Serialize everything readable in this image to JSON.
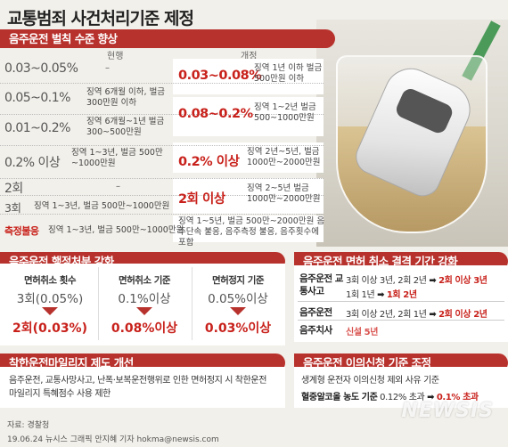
{
  "title": "교통범죄 사건처리기준 제정",
  "section1": {
    "banner": "음주운전 벌칙 수준 향상",
    "col_current": "현행",
    "col_revised": "개정",
    "rows": [
      {
        "current": "0.03~0.05%",
        "current_penalty": "–"
      },
      {
        "current": "0.05~0.1%",
        "current_penalty": "징역 6개월 이하, 벌금 300만원 이하"
      },
      {
        "current": "0.01~0.2%",
        "current_penalty": "징역 6개월~1년 벌금 300~500만원"
      },
      {
        "current": "0.2% 이상",
        "current_penalty": "징역 1~3년, 벌금 500만~1000만원"
      },
      {
        "current": "2회",
        "current_penalty": "–"
      },
      {
        "current": "3회",
        "current_penalty": "징역 1~3년, 벌금 500만~1000만원"
      },
      {
        "current": "측정불응",
        "current_penalty": "징역 1~3년, 벌금 500만~1000만원"
      }
    ],
    "revised": [
      {
        "value": "0.03~0.08%",
        "penalty": "징역 1년 이하 벌금 500만원 이하"
      },
      {
        "value": "0.08~0.2%",
        "penalty": "징역 1~2년 벌금 500~1000만원"
      },
      {
        "value": "0.2% 이상",
        "penalty": "징역 2년~5년, 벌금 1000만~2000만원"
      },
      {
        "value": "2회 이상",
        "penalty": "징역 2~5년 벌금 1000만~2000만원"
      },
      {
        "value": "",
        "penalty": "징역 1~5년, 벌금 500만~2000만원 음주단속 불응, 음주측정 불응, 음주횟수에 포함"
      }
    ]
  },
  "section2": {
    "banner": "음주운전 행정처분 강화",
    "cards": [
      {
        "label": "면허취소 횟수",
        "old": "3회(0.05%)",
        "new": "2회(0.03%)"
      },
      {
        "label": "면허취소 기준",
        "old": "0.1%이상",
        "new": "0.08%이상"
      },
      {
        "label": "면허정지 기준",
        "old": "0.05%이상",
        "new": "0.03%이상"
      }
    ]
  },
  "section3": {
    "banner": "음주운전 면허 취소 결격 기간 강화",
    "rows": [
      {
        "label": "음주운전 교통사고",
        "line1_pre": "3회 이상 3년, 2회 2년",
        "line1_new": "2회 이상 3년",
        "line2_pre": "1회 1년",
        "line2_new": "1회 2년"
      },
      {
        "label": "음주운전",
        "line1_pre": "3회 이상 2년, 2회 1년",
        "line1_new": "2회 이상 2년"
      },
      {
        "label": "음주치사",
        "new": "신설 5년"
      }
    ]
  },
  "section4": {
    "banner": "착한운전마일리지 제도 개선",
    "text": "음주운전, 교통사망사고, 난폭·보복운전행위로 인한 면허정지 시 착한운전 마일리지 특혜점수 사용 제한"
  },
  "section5": {
    "banner": "음주운전 이의신청 기준 조정",
    "line1": "생계형 운전자 이의신청 제외 사유 기준",
    "line2_label": "혈중알코올 농도 기준",
    "line2_old": "0.12% 초과",
    "line2_new": "0.1% 초과"
  },
  "footer": {
    "source": "자료: 경찰청",
    "credit": "19.06.24 뉴시스 그래픽 안지혜 기자 hokma@newsis.com",
    "watermark": "NEWSIS"
  },
  "colors": {
    "accent": "#b8322d",
    "highlight": "#c8211b",
    "background": "#f2f0ea"
  },
  "icons": [
    "arrow-right-icon",
    "triangle-down-icon"
  ]
}
